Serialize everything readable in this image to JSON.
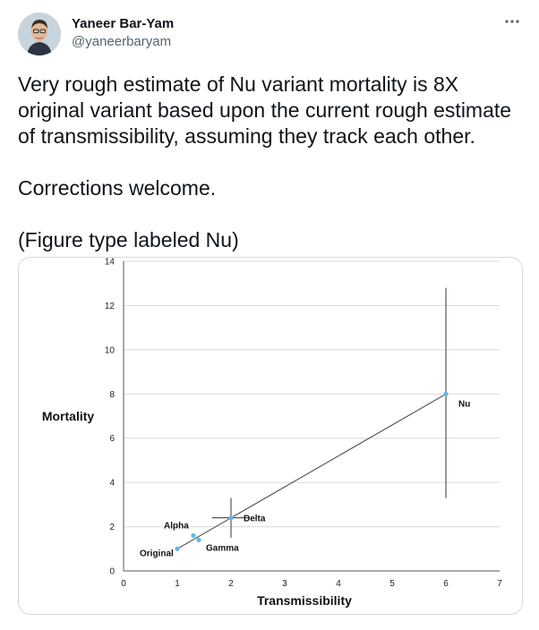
{
  "tweet": {
    "author": {
      "display_name": "Yaneer Bar-Yam",
      "handle": "@yaneerbaryam",
      "avatar_icon": "person-avatar-icon"
    },
    "more_icon": "more-horizontal-icon",
    "paragraphs": [
      "Very rough estimate of Nu variant mortality is 8X original variant based upon the current rough estimate of transmissibility, assuming they track each other.",
      "Corrections welcome.",
      "(Figure type labeled Nu)"
    ]
  },
  "chart_data": {
    "type": "scatter",
    "xlabel": "Transmissibility",
    "ylabel": "Mortality",
    "xlim": [
      0,
      7
    ],
    "ylim": [
      0,
      14
    ],
    "x_ticks": [
      0,
      1,
      2,
      3,
      4,
      5,
      6,
      7
    ],
    "y_ticks": [
      0,
      2,
      4,
      6,
      8,
      10,
      12,
      14
    ],
    "grid": "horizontal",
    "trend_line": {
      "from": [
        1,
        1
      ],
      "to": [
        6,
        8
      ]
    },
    "points": [
      {
        "label": "Original",
        "x": 1.0,
        "y": 1.0
      },
      {
        "label": "Alpha",
        "x": 1.3,
        "y": 1.6
      },
      {
        "label": "Gamma",
        "x": 1.4,
        "y": 1.4
      },
      {
        "label": "Delta",
        "x": 2.0,
        "y": 2.4,
        "x_err": [
          1.65,
          2.35
        ],
        "y_err": [
          1.5,
          3.3
        ]
      },
      {
        "label": "Nu",
        "x": 6.0,
        "y": 8.0,
        "y_err": [
          3.3,
          12.8
        ]
      }
    ],
    "colors": {
      "marker": "#5bb8e8",
      "line": "#444444",
      "grid": "#d9d9d9"
    }
  }
}
